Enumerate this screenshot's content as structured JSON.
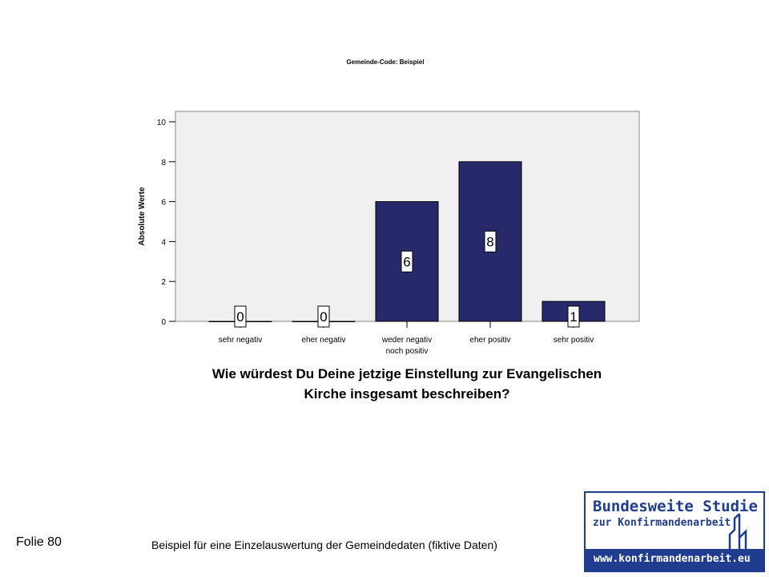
{
  "slide": {
    "number_label": "Folie 80",
    "caption": "Beispiel für eine Einzelauswertung der Gemeindedaten (fiktive Daten)"
  },
  "logo": {
    "line1": "Bundesweite Studie",
    "line2": "zur Konfirmandenarbeit",
    "url": "www.konfirmandenarbeit.eu",
    "color": "#1f3c8f"
  },
  "chart_data": {
    "type": "bar",
    "title": "Gemeinde-Code: Beispiel",
    "categories": [
      "sehr negativ",
      "eher negativ",
      "weder negativ noch positiv",
      "eher positiv",
      "sehr positiv"
    ],
    "category_lines": [
      [
        "sehr negativ"
      ],
      [
        "eher negativ"
      ],
      [
        "weder negativ",
        "noch positiv"
      ],
      [
        "eher positiv"
      ],
      [
        "sehr positiv"
      ]
    ],
    "values": [
      0,
      0,
      6,
      8,
      1
    ],
    "data_labels": [
      "0",
      "0",
      "6",
      "8",
      "1"
    ],
    "xlabel_lines": [
      "Wie würdest Du Deine jetzige Einstellung zur Evangelischen",
      "Kirche insgesamt beschreiben?"
    ],
    "ylabel": "Absolute Werte",
    "ylim": [
      0,
      10
    ],
    "yticks": [
      0,
      2,
      4,
      6,
      8,
      10
    ],
    "ytick_labels": [
      "0",
      "2",
      "4",
      "6",
      "8",
      "10"
    ],
    "grid": false,
    "bar_color": "#27296b",
    "plot_background": "#f0f0f0"
  }
}
